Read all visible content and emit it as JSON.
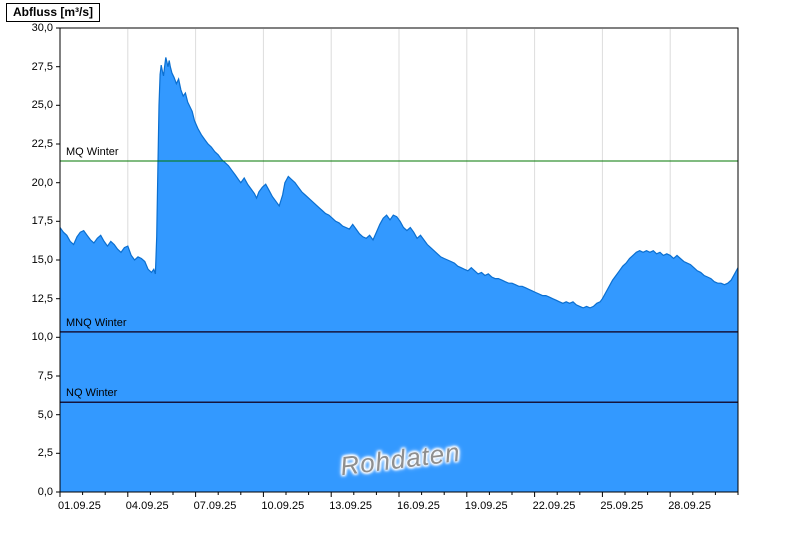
{
  "chart_data": {
    "type": "area",
    "title": "Abfluss [m³/s]",
    "watermark": "Rohdaten",
    "xlim": [
      0,
      30
    ],
    "ylim": [
      0,
      30
    ],
    "x_unit": "day offset from 01.09.25",
    "grid": "vertical-light",
    "y_ticks": [
      {
        "value": 0,
        "label": "0,0"
      },
      {
        "value": 2.5,
        "label": "2,5"
      },
      {
        "value": 5,
        "label": "5,0"
      },
      {
        "value": 7.5,
        "label": "7,5"
      },
      {
        "value": 10,
        "label": "10,0"
      },
      {
        "value": 12.5,
        "label": "12,5"
      },
      {
        "value": 15,
        "label": "15,0"
      },
      {
        "value": 17.5,
        "label": "17,5"
      },
      {
        "value": 20,
        "label": "20,0"
      },
      {
        "value": 22.5,
        "label": "22,5"
      },
      {
        "value": 25,
        "label": "25,0"
      },
      {
        "value": 27.5,
        "label": "27,5"
      },
      {
        "value": 30,
        "label": "30,0"
      }
    ],
    "x_ticks": [
      {
        "day": 0,
        "label": "01.09.25"
      },
      {
        "day": 3,
        "label": "04.09.25"
      },
      {
        "day": 6,
        "label": "07.09.25"
      },
      {
        "day": 9,
        "label": "10.09.25"
      },
      {
        "day": 12,
        "label": "13.09.25"
      },
      {
        "day": 15,
        "label": "16.09.25"
      },
      {
        "day": 18,
        "label": "19.09.25"
      },
      {
        "day": 21,
        "label": "22.09.25"
      },
      {
        "day": 24,
        "label": "25.09.25"
      },
      {
        "day": 27,
        "label": "28.09.25"
      }
    ],
    "x_minor_tick_step_days": 1,
    "reference_lines": [
      {
        "label": "MQ Winter",
        "value": 21.4,
        "color": "#007700",
        "width": 1
      },
      {
        "label": "MNQ Winter",
        "value": 10.35,
        "color": "#14143c",
        "width": 1.5
      },
      {
        "label": "NQ Winter",
        "value": 5.8,
        "color": "#14143c",
        "width": 1.5
      }
    ],
    "series": [
      {
        "name": "Abfluss Rohdaten",
        "fill_color": "#3399FF",
        "line_color": "#0b6fd0",
        "points": [
          [
            0,
            17.1
          ],
          [
            0.15,
            16.8
          ],
          [
            0.3,
            16.6
          ],
          [
            0.45,
            16.2
          ],
          [
            0.6,
            16.0
          ],
          [
            0.75,
            16.5
          ],
          [
            0.9,
            16.8
          ],
          [
            1.05,
            16.9
          ],
          [
            1.2,
            16.6
          ],
          [
            1.35,
            16.3
          ],
          [
            1.5,
            16.1
          ],
          [
            1.65,
            16.4
          ],
          [
            1.8,
            16.6
          ],
          [
            1.95,
            16.2
          ],
          [
            2.1,
            15.9
          ],
          [
            2.25,
            16.2
          ],
          [
            2.4,
            16.0
          ],
          [
            2.55,
            15.7
          ],
          [
            2.7,
            15.5
          ],
          [
            2.85,
            15.8
          ],
          [
            3.0,
            15.9
          ],
          [
            3.15,
            15.3
          ],
          [
            3.3,
            15.0
          ],
          [
            3.45,
            15.2
          ],
          [
            3.6,
            15.1
          ],
          [
            3.75,
            14.9
          ],
          [
            3.9,
            14.4
          ],
          [
            4.05,
            14.2
          ],
          [
            4.15,
            14.4
          ],
          [
            4.22,
            14.1
          ],
          [
            4.28,
            16.5
          ],
          [
            4.33,
            21.0
          ],
          [
            4.38,
            25.0
          ],
          [
            4.43,
            27.0
          ],
          [
            4.48,
            27.6
          ],
          [
            4.53,
            27.2
          ],
          [
            4.58,
            26.9
          ],
          [
            4.63,
            27.5
          ],
          [
            4.68,
            28.1
          ],
          [
            4.73,
            27.8
          ],
          [
            4.78,
            27.5
          ],
          [
            4.83,
            27.9
          ],
          [
            4.88,
            27.5
          ],
          [
            4.95,
            27.1
          ],
          [
            5.05,
            26.8
          ],
          [
            5.15,
            26.4
          ],
          [
            5.25,
            26.7
          ],
          [
            5.35,
            26.0
          ],
          [
            5.45,
            25.6
          ],
          [
            5.55,
            25.8
          ],
          [
            5.65,
            25.2
          ],
          [
            5.75,
            24.9
          ],
          [
            5.85,
            24.6
          ],
          [
            5.95,
            24.0
          ],
          [
            6.1,
            23.5
          ],
          [
            6.25,
            23.1
          ],
          [
            6.4,
            22.8
          ],
          [
            6.55,
            22.5
          ],
          [
            6.7,
            22.3
          ],
          [
            6.85,
            22.0
          ],
          [
            7.0,
            21.8
          ],
          [
            7.15,
            21.5
          ],
          [
            7.3,
            21.3
          ],
          [
            7.45,
            21.1
          ],
          [
            7.6,
            20.8
          ],
          [
            7.75,
            20.5
          ],
          [
            7.9,
            20.2
          ],
          [
            8.0,
            20.0
          ],
          [
            8.15,
            20.3
          ],
          [
            8.3,
            19.9
          ],
          [
            8.45,
            19.6
          ],
          [
            8.6,
            19.3
          ],
          [
            8.7,
            19.0
          ],
          [
            8.8,
            19.4
          ],
          [
            8.95,
            19.7
          ],
          [
            9.1,
            19.9
          ],
          [
            9.25,
            19.5
          ],
          [
            9.4,
            19.1
          ],
          [
            9.55,
            18.8
          ],
          [
            9.7,
            18.5
          ],
          [
            9.85,
            19.2
          ],
          [
            9.95,
            20.0
          ],
          [
            10.1,
            20.4
          ],
          [
            10.25,
            20.2
          ],
          [
            10.4,
            20.0
          ],
          [
            10.55,
            19.7
          ],
          [
            10.7,
            19.4
          ],
          [
            10.85,
            19.2
          ],
          [
            11.0,
            19.0
          ],
          [
            11.15,
            18.8
          ],
          [
            11.3,
            18.6
          ],
          [
            11.45,
            18.4
          ],
          [
            11.6,
            18.2
          ],
          [
            11.75,
            18.0
          ],
          [
            11.9,
            17.9
          ],
          [
            12.05,
            17.7
          ],
          [
            12.2,
            17.5
          ],
          [
            12.35,
            17.4
          ],
          [
            12.5,
            17.2
          ],
          [
            12.65,
            17.1
          ],
          [
            12.8,
            17.0
          ],
          [
            12.95,
            17.3
          ],
          [
            13.1,
            17.0
          ],
          [
            13.25,
            16.7
          ],
          [
            13.4,
            16.5
          ],
          [
            13.55,
            16.4
          ],
          [
            13.7,
            16.6
          ],
          [
            13.85,
            16.3
          ],
          [
            14.0,
            16.8
          ],
          [
            14.15,
            17.3
          ],
          [
            14.3,
            17.7
          ],
          [
            14.45,
            17.9
          ],
          [
            14.6,
            17.6
          ],
          [
            14.75,
            17.9
          ],
          [
            14.9,
            17.8
          ],
          [
            15.05,
            17.5
          ],
          [
            15.2,
            17.1
          ],
          [
            15.35,
            16.9
          ],
          [
            15.5,
            17.1
          ],
          [
            15.65,
            16.8
          ],
          [
            15.8,
            16.4
          ],
          [
            15.95,
            16.6
          ],
          [
            16.1,
            16.3
          ],
          [
            16.25,
            16.0
          ],
          [
            16.4,
            15.8
          ],
          [
            16.55,
            15.6
          ],
          [
            16.7,
            15.4
          ],
          [
            16.85,
            15.2
          ],
          [
            17.0,
            15.1
          ],
          [
            17.15,
            15.0
          ],
          [
            17.3,
            14.9
          ],
          [
            17.45,
            14.8
          ],
          [
            17.6,
            14.6
          ],
          [
            17.75,
            14.5
          ],
          [
            17.9,
            14.4
          ],
          [
            18.05,
            14.3
          ],
          [
            18.2,
            14.5
          ],
          [
            18.35,
            14.3
          ],
          [
            18.5,
            14.1
          ],
          [
            18.65,
            14.2
          ],
          [
            18.8,
            14.0
          ],
          [
            18.95,
            14.1
          ],
          [
            19.1,
            13.9
          ],
          [
            19.25,
            13.8
          ],
          [
            19.4,
            13.8
          ],
          [
            19.55,
            13.7
          ],
          [
            19.7,
            13.6
          ],
          [
            19.85,
            13.5
          ],
          [
            20.0,
            13.5
          ],
          [
            20.15,
            13.4
          ],
          [
            20.3,
            13.3
          ],
          [
            20.45,
            13.3
          ],
          [
            20.6,
            13.2
          ],
          [
            20.75,
            13.1
          ],
          [
            20.9,
            13.0
          ],
          [
            21.05,
            12.9
          ],
          [
            21.2,
            12.8
          ],
          [
            21.35,
            12.7
          ],
          [
            21.5,
            12.7
          ],
          [
            21.65,
            12.6
          ],
          [
            21.8,
            12.5
          ],
          [
            21.95,
            12.4
          ],
          [
            22.1,
            12.3
          ],
          [
            22.25,
            12.2
          ],
          [
            22.4,
            12.3
          ],
          [
            22.55,
            12.2
          ],
          [
            22.7,
            12.3
          ],
          [
            22.85,
            12.1
          ],
          [
            23.0,
            12.0
          ],
          [
            23.15,
            11.9
          ],
          [
            23.3,
            12.0
          ],
          [
            23.45,
            11.9
          ],
          [
            23.6,
            12.0
          ],
          [
            23.75,
            12.2
          ],
          [
            23.9,
            12.3
          ],
          [
            24.0,
            12.5
          ],
          [
            24.15,
            12.9
          ],
          [
            24.3,
            13.3
          ],
          [
            24.45,
            13.7
          ],
          [
            24.6,
            14.0
          ],
          [
            24.75,
            14.3
          ],
          [
            24.9,
            14.6
          ],
          [
            25.05,
            14.8
          ],
          [
            25.2,
            15.1
          ],
          [
            25.35,
            15.3
          ],
          [
            25.5,
            15.5
          ],
          [
            25.65,
            15.6
          ],
          [
            25.8,
            15.5
          ],
          [
            25.95,
            15.6
          ],
          [
            26.1,
            15.5
          ],
          [
            26.25,
            15.6
          ],
          [
            26.4,
            15.4
          ],
          [
            26.55,
            15.5
          ],
          [
            26.7,
            15.3
          ],
          [
            26.85,
            15.4
          ],
          [
            27.0,
            15.3
          ],
          [
            27.15,
            15.1
          ],
          [
            27.3,
            15.3
          ],
          [
            27.45,
            15.1
          ],
          [
            27.6,
            14.9
          ],
          [
            27.75,
            14.8
          ],
          [
            27.9,
            14.7
          ],
          [
            28.05,
            14.5
          ],
          [
            28.2,
            14.3
          ],
          [
            28.35,
            14.2
          ],
          [
            28.5,
            14.0
          ],
          [
            28.65,
            13.9
          ],
          [
            28.8,
            13.8
          ],
          [
            28.95,
            13.6
          ],
          [
            29.1,
            13.5
          ],
          [
            29.25,
            13.5
          ],
          [
            29.4,
            13.4
          ],
          [
            29.55,
            13.5
          ],
          [
            29.7,
            13.7
          ],
          [
            29.85,
            14.1
          ],
          [
            30.0,
            14.5
          ]
        ]
      }
    ]
  }
}
